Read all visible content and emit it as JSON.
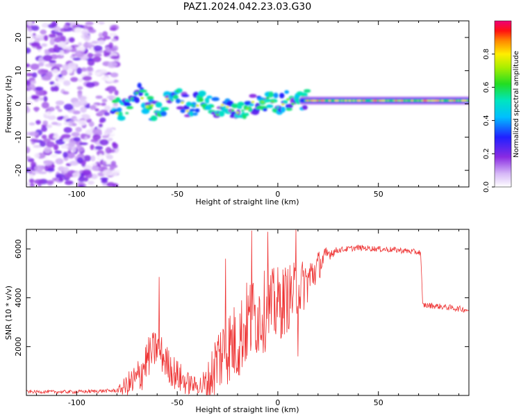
{
  "figure": {
    "title": "PAZ1.2024.042.23.03.G30"
  },
  "chart_data": [
    {
      "type": "heatmap",
      "xlabel": "Height of straight line (km)",
      "ylabel": "Frequency (Hz)",
      "xlim": [
        -125,
        95
      ],
      "ylim": [
        -25,
        25
      ],
      "xticks": [
        -100,
        -50,
        0,
        50
      ],
      "yticks": [
        -20,
        -10,
        0,
        10,
        20
      ],
      "colorbar": {
        "label": "Normalized spectral amplitude",
        "range": [
          0,
          1
        ],
        "ticks": [
          0.0,
          0.2,
          0.4,
          0.6,
          0.8
        ],
        "colormap": "white-purple-blue-cyan-green-yellow-red-magenta"
      },
      "features": [
        {
          "description": "broadband noise",
          "x_range": [
            -125,
            -80
          ],
          "freq_range": [
            -25,
            25
          ],
          "amplitude": 0.15
        },
        {
          "description": "signal track",
          "points": [
            [
              -82,
              -1.5
            ],
            [
              -75,
              -1.5
            ],
            [
              -70,
              4
            ],
            [
              -65,
              0
            ],
            [
              -60,
              -3
            ],
            [
              -55,
              1
            ],
            [
              -50,
              3
            ],
            [
              -45,
              -1
            ],
            [
              -40,
              0
            ],
            [
              -35,
              1
            ],
            [
              -30,
              -2
            ],
            [
              -25,
              -1
            ],
            [
              -20,
              -4
            ],
            [
              -15,
              0
            ],
            [
              -10,
              0
            ],
            [
              -5,
              1
            ],
            [
              0,
              0
            ],
            [
              5,
              1
            ],
            [
              10,
              1.5
            ],
            [
              20,
              1
            ],
            [
              50,
              1
            ],
            [
              80,
              1
            ],
            [
              95,
              1.5
            ]
          ],
          "amplitude_range": [
            0.1,
            1.0
          ]
        }
      ],
      "grid": false
    },
    {
      "type": "line",
      "xlabel": "Height of straight line (km)",
      "ylabel": "SNR (10 * v/v)",
      "xlim": [
        -125,
        95
      ],
      "ylim": [
        0,
        6800
      ],
      "xticks": [
        -100,
        -50,
        0,
        50
      ],
      "yticks": [
        2000,
        4000,
        6000
      ],
      "color": "#ee3333",
      "envelope": [
        {
          "x": -125,
          "y": 150
        },
        {
          "x": -100,
          "y": 150
        },
        {
          "x": -80,
          "y": 200
        },
        {
          "x": -70,
          "y": 600
        },
        {
          "x": -65,
          "y": 1500
        },
        {
          "x": -60,
          "y": 2000
        },
        {
          "x": -55,
          "y": 1300
        },
        {
          "x": -50,
          "y": 800
        },
        {
          "x": -45,
          "y": 500
        },
        {
          "x": -40,
          "y": 400
        },
        {
          "x": -35,
          "y": 400
        },
        {
          "x": -30,
          "y": 1500
        },
        {
          "x": -25,
          "y": 2000
        },
        {
          "x": -20,
          "y": 2200
        },
        {
          "x": -15,
          "y": 3000
        },
        {
          "x": -10,
          "y": 3300
        },
        {
          "x": -5,
          "y": 3500
        },
        {
          "x": 0,
          "y": 3700
        },
        {
          "x": 5,
          "y": 4000
        },
        {
          "x": 10,
          "y": 4300
        },
        {
          "x": 15,
          "y": 4700
        },
        {
          "x": 20,
          "y": 5300
        },
        {
          "x": 25,
          "y": 5800
        },
        {
          "x": 30,
          "y": 5950
        },
        {
          "x": 40,
          "y": 6050
        },
        {
          "x": 50,
          "y": 6000
        },
        {
          "x": 60,
          "y": 5950
        },
        {
          "x": 71,
          "y": 5850
        },
        {
          "x": 72,
          "y": 3700
        },
        {
          "x": 80,
          "y": 3650
        },
        {
          "x": 90,
          "y": 3550
        },
        {
          "x": 95,
          "y": 3500
        }
      ],
      "noise_amplitude": [
        {
          "x": -125,
          "amp": 60
        },
        {
          "x": -80,
          "amp": 80
        },
        {
          "x": -70,
          "amp": 900
        },
        {
          "x": -50,
          "amp": 700
        },
        {
          "x": -40,
          "amp": 300
        },
        {
          "x": -30,
          "amp": 1500
        },
        {
          "x": -15,
          "amp": 1800
        },
        {
          "x": 0,
          "amp": 1600
        },
        {
          "x": 15,
          "amp": 1000
        },
        {
          "x": 25,
          "amp": 300
        },
        {
          "x": 30,
          "amp": 120
        },
        {
          "x": 71,
          "amp": 120
        },
        {
          "x": 72,
          "amp": 120
        },
        {
          "x": 95,
          "amp": 120
        }
      ],
      "spikes": [
        {
          "x": -59,
          "y": 4850
        },
        {
          "x": -26,
          "y": 5600
        },
        {
          "x": -13,
          "y": 6750
        },
        {
          "x": -5,
          "y": 6700
        },
        {
          "x": 9,
          "y": 6800
        },
        {
          "x": 10,
          "y": 1600
        }
      ],
      "grid": false
    }
  ]
}
